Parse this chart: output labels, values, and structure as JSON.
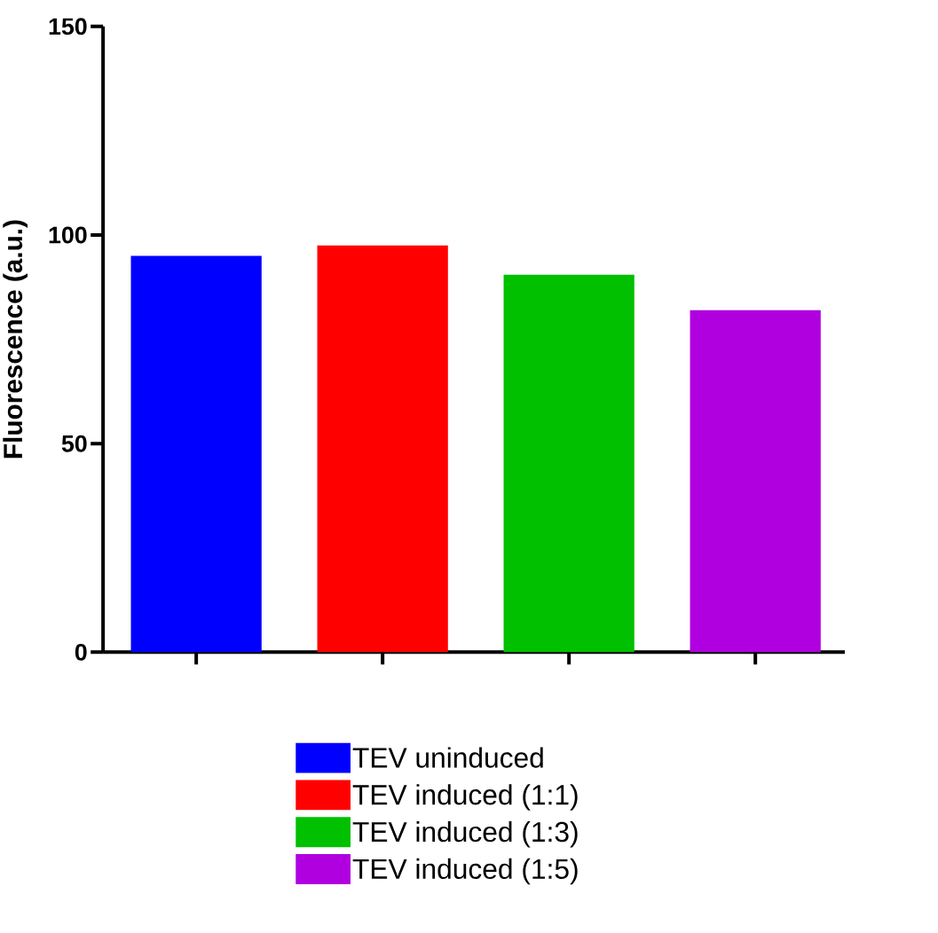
{
  "chart_data": {
    "type": "bar",
    "ylabel": "Fluorescence (a.u.)",
    "categories": [
      null,
      null,
      null,
      null
    ],
    "series": [
      {
        "name": "TEV uninduced",
        "color": "#0000ff",
        "values": [
          95,
          null,
          null,
          null
        ]
      },
      {
        "name": "TEV induced (1:1)",
        "color": "#ff0000",
        "values": [
          null,
          97.5,
          null,
          null
        ]
      },
      {
        "name": "TEV induced (1:3)",
        "color": "#00c000",
        "values": [
          null,
          null,
          90.5,
          null
        ]
      },
      {
        "name": "TEV induced (1:5)",
        "color": "#b000e0",
        "values": [
          null,
          null,
          null,
          82
        ]
      }
    ],
    "ylim": [
      0,
      150
    ],
    "yticks": [
      0,
      50,
      100,
      150
    ],
    "legend": "bottom"
  }
}
